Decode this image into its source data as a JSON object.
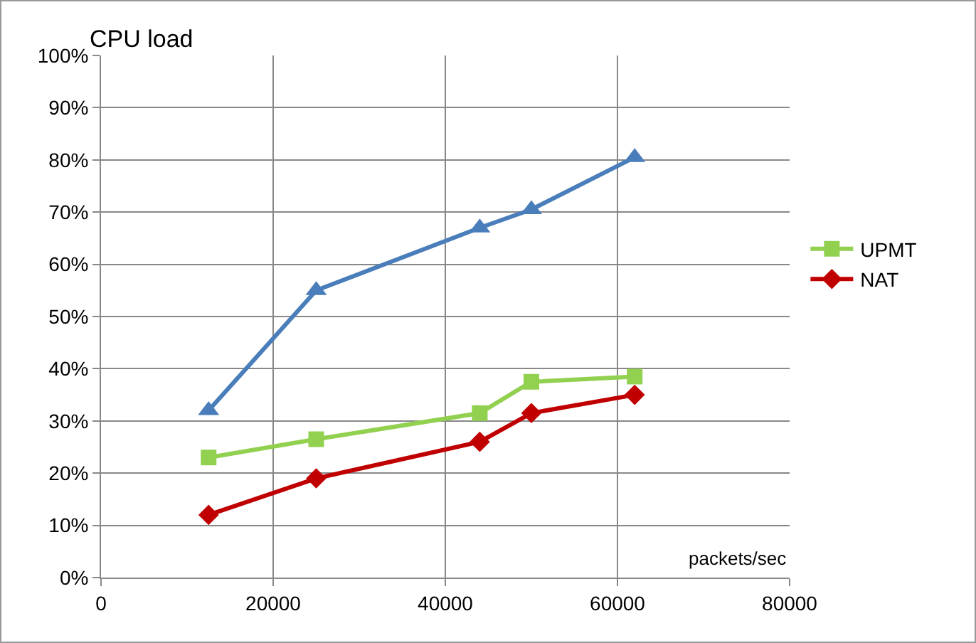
{
  "chart_data": {
    "type": "line",
    "ylabel": "CPU load",
    "xlabel": "packets/sec",
    "x": [
      12500,
      25000,
      44000,
      50000,
      62000
    ],
    "series": [
      {
        "color": "#4a7ebb",
        "marker": "triangle",
        "values": [
          32,
          55,
          67,
          70.5,
          80.5
        ]
      },
      {
        "name": "UPMT",
        "color": "#92d050",
        "marker": "square",
        "values": [
          23,
          26.5,
          31.5,
          37.5,
          38.5
        ]
      },
      {
        "name": "NAT",
        "color": "#c00000",
        "marker": "diamond",
        "values": [
          12,
          19,
          26,
          31.5,
          35
        ]
      }
    ],
    "xlim": [
      0,
      80000
    ],
    "xticks": [
      0,
      20000,
      40000,
      60000,
      80000
    ],
    "ylim": [
      0,
      100
    ],
    "yticks": [
      {
        "value": 0,
        "label": "0%"
      },
      {
        "value": 10,
        "label": "10%"
      },
      {
        "value": 20,
        "label": "20%"
      },
      {
        "value": 30,
        "label": "30%"
      },
      {
        "value": 40,
        "label": "40%"
      },
      {
        "value": 50,
        "label": "50%"
      },
      {
        "value": 60,
        "label": "60%"
      },
      {
        "value": 70,
        "label": "70%"
      },
      {
        "value": 80,
        "label": "80%"
      },
      {
        "value": 90,
        "label": "90%"
      },
      {
        "value": 100,
        "label": "100%"
      }
    ],
    "grid": true,
    "legend": "right"
  }
}
